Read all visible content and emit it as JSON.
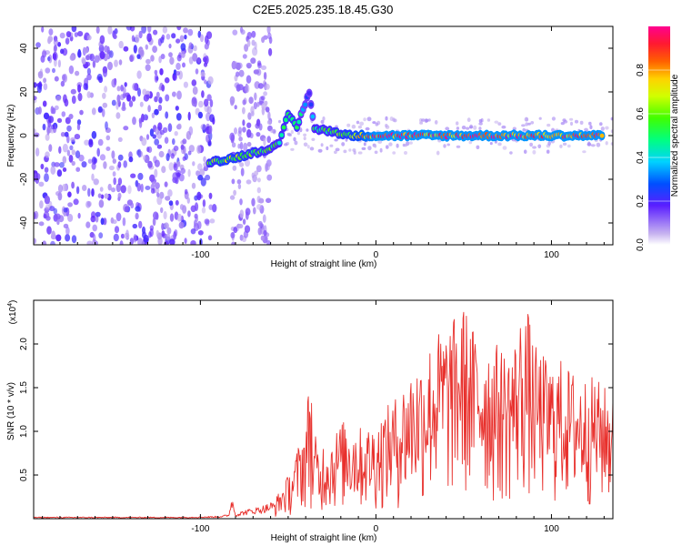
{
  "chart_data": [
    {
      "type": "heatmap",
      "title": "C2E5.2025.235.18.45.G30",
      "xlabel": "Height of straight line (km)",
      "ylabel": "Frequency (Hz)",
      "xlim": [
        -195,
        135
      ],
      "ylim": [
        -50,
        50
      ],
      "xticks": [
        -100,
        0,
        100
      ],
      "yticks": [
        -40,
        -20,
        0,
        20,
        40
      ],
      "colorbar": {
        "label": "Normalized spectral amplitude",
        "range": [
          0,
          1
        ],
        "ticks": [
          "0.0",
          "0.2",
          "0.4",
          "0.6",
          "0.8"
        ],
        "tick_values": [
          0.0,
          0.2,
          0.4,
          0.6,
          0.8
        ]
      },
      "noise_regions": [
        [
          -195,
          -92
        ],
        [
          -82,
          -60
        ]
      ],
      "signal_track": [
        {
          "x": -95,
          "f": -12,
          "amp": 0.6
        },
        {
          "x": -85,
          "f": -11,
          "amp": 0.7
        },
        {
          "x": -75,
          "f": -9,
          "amp": 0.65
        },
        {
          "x": -65,
          "f": -7,
          "amp": 0.6
        },
        {
          "x": -55,
          "f": -4,
          "amp": 0.55
        },
        {
          "x": -50,
          "f": 10,
          "amp": 0.6
        },
        {
          "x": -45,
          "f": 4,
          "amp": 0.6
        },
        {
          "x": -38,
          "f": 20,
          "amp": 0.2
        },
        {
          "x": -35,
          "f": 3,
          "amp": 0.55
        },
        {
          "x": -25,
          "f": 2,
          "amp": 0.6
        },
        {
          "x": -15,
          "f": 0,
          "amp": 0.7
        },
        {
          "x": 0,
          "f": 0,
          "amp": 0.95
        },
        {
          "x": 50,
          "f": 0,
          "amp": 0.95
        },
        {
          "x": 100,
          "f": 0,
          "amp": 0.95
        },
        {
          "x": 130,
          "f": 0,
          "amp": 0.95
        }
      ]
    },
    {
      "type": "line",
      "xlabel": "Height of straight line (km)",
      "ylabel": "SNR (10 * v/v)",
      "yscale_label": "(x10",
      "yscale_exp": "4",
      "yscale_close": ")",
      "xlim": [
        -195,
        135
      ],
      "ylim": [
        0,
        2.5
      ],
      "xticks": [
        -100,
        0,
        100
      ],
      "yticks": [
        0.5,
        1.0,
        1.5,
        2.0
      ],
      "ytick_labels": [
        "0.5",
        "1.0",
        "1.5",
        "2.0"
      ],
      "color": "#e8302c",
      "series": [
        {
          "name": "SNR",
          "x": [
            -195,
            -150,
            -110,
            -90,
            -84,
            -82,
            -80,
            -75,
            -65,
            -58,
            -52,
            -48,
            -45,
            -42,
            -40,
            -37,
            -36,
            -34,
            -32,
            -30,
            -25,
            -20,
            -15,
            -10,
            -5,
            0,
            5,
            10,
            15,
            20,
            25,
            30,
            35,
            40,
            45,
            50,
            55,
            60,
            65,
            70,
            75,
            80,
            85,
            90,
            95,
            100,
            105,
            110,
            115,
            120,
            125,
            130,
            135
          ],
          "y": [
            0.02,
            0.02,
            0.02,
            0.03,
            0.05,
            0.28,
            0.06,
            0.1,
            0.15,
            0.2,
            0.4,
            0.55,
            0.75,
            0.95,
            1.05,
            1.8,
            0.7,
            0.95,
            0.6,
            0.85,
            0.9,
            1.05,
            1.1,
            1.0,
            1.0,
            1.05,
            1.2,
            1.3,
            1.45,
            1.65,
            1.75,
            1.9,
            2.05,
            2.1,
            2.2,
            2.35,
            2.1,
            2.05,
            1.95,
            1.9,
            1.85,
            2.0,
            2.45,
            1.9,
            1.8,
            1.7,
            1.75,
            1.65,
            1.6,
            1.55,
            1.55,
            1.45,
            1.35
          ]
        }
      ]
    }
  ]
}
